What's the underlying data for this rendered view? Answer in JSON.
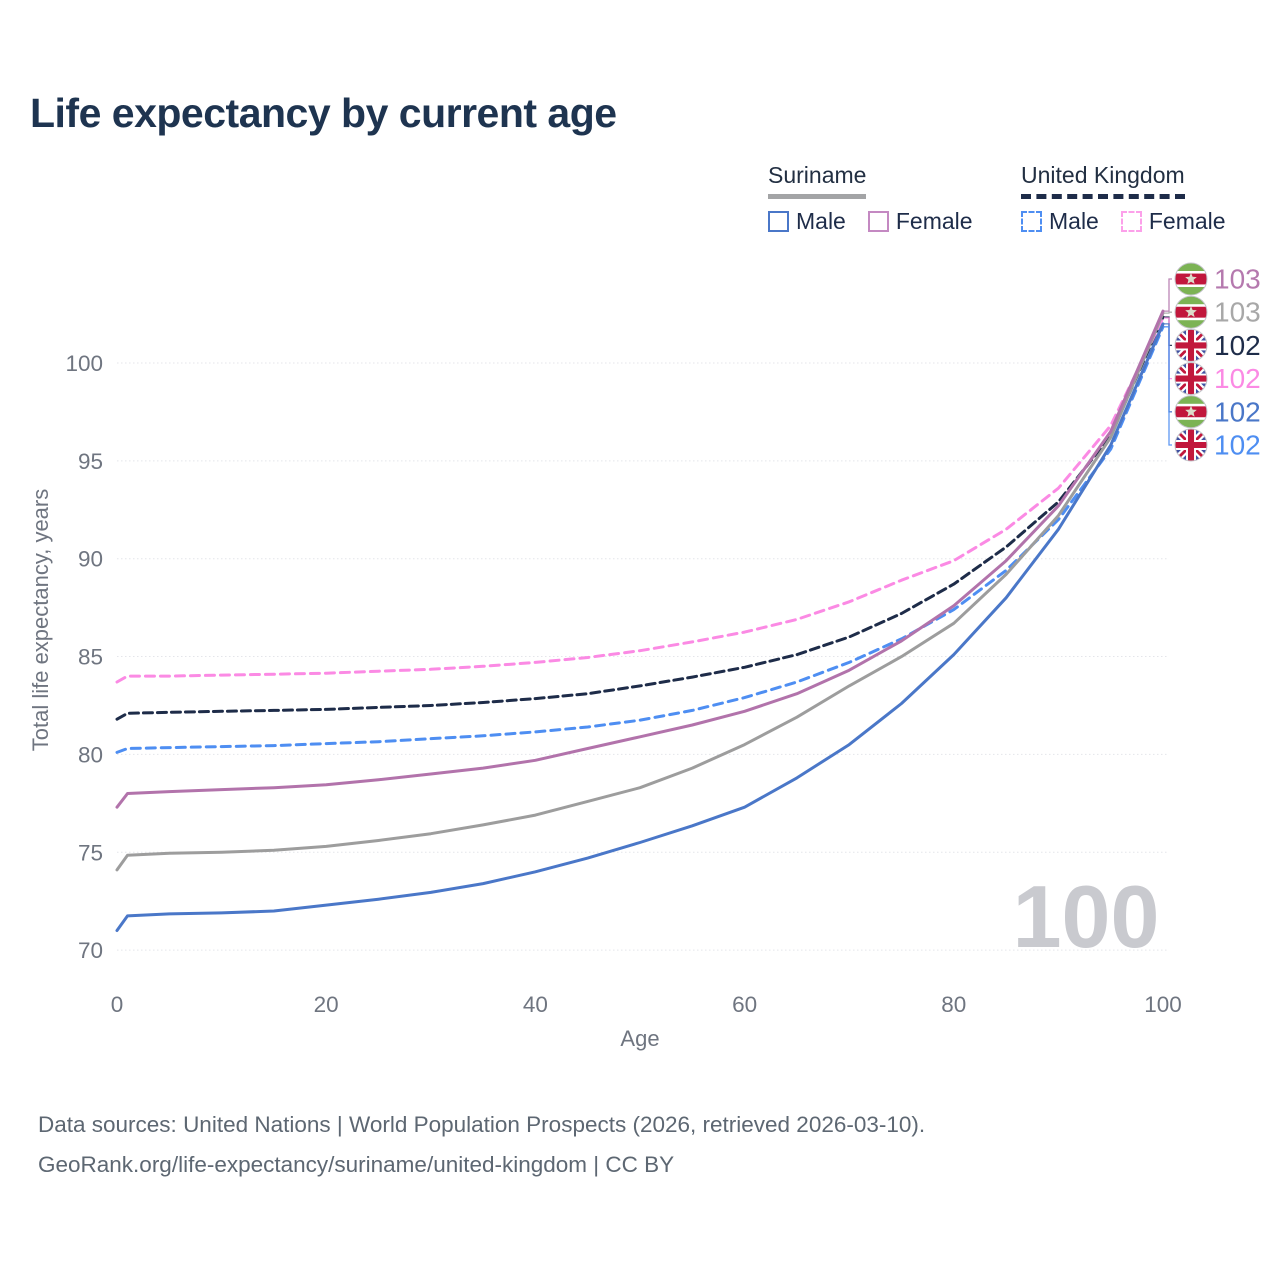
{
  "title": "Life expectancy by current age",
  "legend": {
    "groups": [
      {
        "name": "Suriname",
        "line_style": "solid",
        "items": [
          {
            "label": "Male"
          },
          {
            "label": "Female"
          }
        ]
      },
      {
        "name": "United Kingdom",
        "line_style": "dashed",
        "items": [
          {
            "label": "Male"
          },
          {
            "label": "Female"
          }
        ]
      }
    ]
  },
  "watermark": "100",
  "footer": {
    "line1": "Data sources: United Nations | World Population Prospects (2026, retrieved 2026-03-10).",
    "line2": "GeoRank.org/life-expectancy/suriname/united-kingdom | CC BY"
  },
  "colors": {
    "title_text": "#1e3450",
    "axis_text": "#6f7580",
    "gridline": "#e4e5ea",
    "watermark_text": "#c9cacf",
    "footer_text": "#5d6772"
  },
  "chart_data": {
    "type": "line",
    "title": "Life expectancy by current age",
    "xlabel": "Age",
    "ylabel": "Total life expectancy, years",
    "xlim": [
      0,
      100
    ],
    "ylim": [
      69.5,
      104
    ],
    "xticks": [
      0,
      20,
      40,
      60,
      80,
      100
    ],
    "yticks": [
      70,
      75,
      80,
      85,
      90,
      95,
      100
    ],
    "grid": true,
    "legend_position": "top-right",
    "x": [
      0,
      1,
      5,
      10,
      15,
      20,
      25,
      30,
      35,
      40,
      45,
      50,
      55,
      60,
      65,
      70,
      75,
      80,
      85,
      90,
      95,
      100
    ],
    "series": [
      {
        "key": "uk_male",
        "name": "United Kingdom Male",
        "color": "#4e8ef2",
        "dash": "9 6",
        "values": [
          80.1,
          80.3,
          80.35,
          80.4,
          80.45,
          80.55,
          80.65,
          80.8,
          80.95,
          81.15,
          81.4,
          81.75,
          82.25,
          82.9,
          83.7,
          84.7,
          85.9,
          87.4,
          89.4,
          92.0,
          95.6,
          101.85
        ]
      },
      {
        "key": "uk_total",
        "name": "United Kingdom",
        "color": "#1e2c49",
        "dash": "9 5",
        "values": [
          81.8,
          82.1,
          82.15,
          82.2,
          82.25,
          82.3,
          82.4,
          82.5,
          82.65,
          82.85,
          83.1,
          83.5,
          83.95,
          84.45,
          85.1,
          86.0,
          87.2,
          88.7,
          90.6,
          92.9,
          96.3,
          102.35
        ]
      },
      {
        "key": "uk_female",
        "name": "United Kingdom Female",
        "color": "#fb8ae4",
        "dash": "9 6",
        "values": [
          83.7,
          84.0,
          84.0,
          84.05,
          84.1,
          84.15,
          84.25,
          84.35,
          84.5,
          84.7,
          84.95,
          85.3,
          85.75,
          86.25,
          86.9,
          87.8,
          88.9,
          89.9,
          91.5,
          93.6,
          96.8,
          102.3
        ]
      },
      {
        "key": "suriname_male",
        "name": "Suriname Male",
        "color": "#4a77c8",
        "dash": null,
        "values": [
          71.0,
          71.75,
          71.85,
          71.9,
          72.0,
          72.3,
          72.6,
          72.95,
          73.4,
          74.0,
          74.7,
          75.5,
          76.35,
          77.3,
          78.8,
          80.5,
          82.6,
          85.1,
          88.0,
          91.5,
          95.8,
          102.0
        ]
      },
      {
        "key": "suriname_total",
        "name": "Suriname",
        "color": "#9d9d9d",
        "dash": null,
        "values": [
          74.1,
          74.85,
          74.95,
          75.0,
          75.1,
          75.3,
          75.6,
          75.95,
          76.4,
          76.9,
          77.6,
          78.3,
          79.3,
          80.5,
          81.9,
          83.5,
          85.0,
          86.7,
          89.2,
          92.2,
          96.2,
          102.55
        ]
      },
      {
        "key": "suriname_female",
        "name": "Suriname Female",
        "color": "#b273ab",
        "dash": null,
        "values": [
          77.3,
          78.0,
          78.1,
          78.2,
          78.3,
          78.45,
          78.7,
          79.0,
          79.3,
          79.7,
          80.3,
          80.9,
          81.5,
          82.2,
          83.1,
          84.3,
          85.8,
          87.6,
          89.9,
          92.7,
          96.5,
          102.65
        ]
      }
    ],
    "end_labels": [
      {
        "series_key": "suriname_female",
        "flag": "suriname",
        "text": "103",
        "color": "#b579ae"
      },
      {
        "series_key": "suriname_total",
        "flag": "suriname",
        "text": "103",
        "color": "#a8a8a8"
      },
      {
        "series_key": "uk_total",
        "flag": "uk",
        "text": "102",
        "color": "#1e2c49"
      },
      {
        "series_key": "uk_female",
        "flag": "uk",
        "text": "102",
        "color": "#fb8ae4"
      },
      {
        "series_key": "suriname_male",
        "flag": "suriname",
        "text": "102",
        "color": "#4a77c8"
      },
      {
        "series_key": "uk_male",
        "flag": "uk",
        "text": "102",
        "color": "#4e8ef2"
      }
    ],
    "annotations": [
      {
        "text": "100",
        "role": "age-cursor-watermark"
      }
    ]
  }
}
